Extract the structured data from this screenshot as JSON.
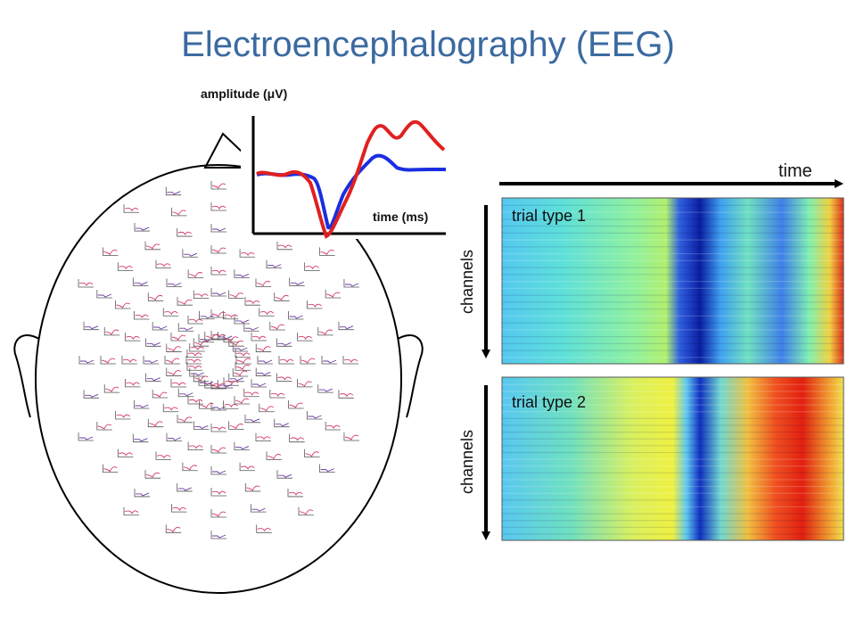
{
  "slide": {
    "title": "Electroencephalography (EEG)"
  },
  "erp_inset": {
    "ylabel": "amplitude (μV)",
    "xlabel": "time (ms)"
  },
  "heatmaps": {
    "time_label": "time",
    "channels_label": "channels",
    "panel1_label": "trial type 1",
    "panel2_label": "trial type 2"
  },
  "colors": {
    "title": "#3b6aa0",
    "series_red": "#e02020",
    "series_blue": "#1a2ee0",
    "mini_plot_red": "#d23a6a",
    "mini_plot_blue": "#6a3aa0"
  }
}
